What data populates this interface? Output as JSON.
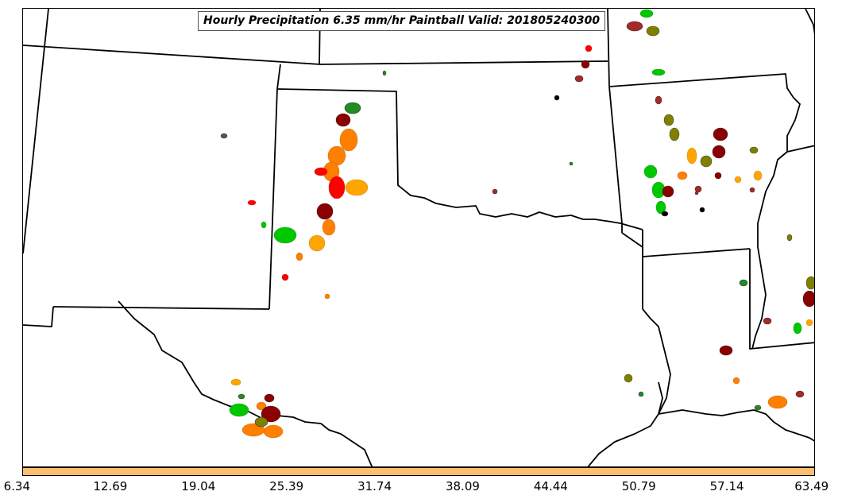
{
  "title": "Hourly Precipitation 6.35 mm/hr Paintball Valid: 201805240300",
  "colorbar": {
    "ticks": [
      "6.34",
      "12.69",
      "19.04",
      "25.39",
      "31.74",
      "38.09",
      "44.44",
      "50.79",
      "57.14",
      "63.49"
    ],
    "fill_color": "#fdbf6f",
    "edge_color": "#000000"
  },
  "map": {
    "background": "#ffffff",
    "border_color": "#000000",
    "member_colors": [
      "#00c800",
      "#228b22",
      "#8b0000",
      "#ff0000",
      "#ff7f00",
      "#ffa500",
      "#808000",
      "#a52a2a",
      "#000000"
    ]
  }
}
